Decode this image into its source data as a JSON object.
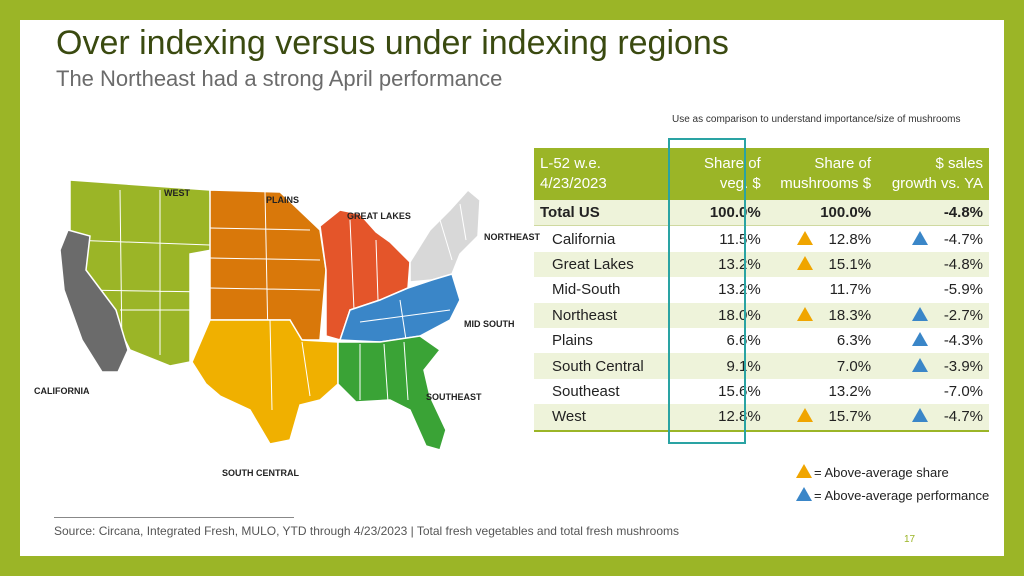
{
  "title": "Over indexing versus under indexing regions",
  "subtitle": "The Northeast had a strong April performance",
  "note": "Use as comparison to understand importance/size of mushrooms",
  "map": {
    "labels": {
      "west": "WEST",
      "plains": "PLAINS",
      "great_lakes": "GREAT LAKES",
      "northeast": "NORTHEAST",
      "mid_south": "MID SOUTH",
      "california": "CALIFORNIA",
      "southeast": "SOUTHEAST",
      "south_central": "SOUTH CENTRAL"
    },
    "colors": {
      "west": "#9bb527",
      "plains": "#d9780a",
      "great_lakes": "#e4552a",
      "northeast": "#d8d8d8",
      "mid_south": "#3a86c8",
      "california": "#6b6b6b",
      "southeast": "#3aa336",
      "south_central": "#f0b000"
    }
  },
  "table": {
    "headers": {
      "col1": [
        "L-52 w.e.",
        "4/23/2023"
      ],
      "col2": [
        "Share of",
        "veg. $"
      ],
      "col3": [
        "Share of",
        "mushrooms $"
      ],
      "col4": [
        "$ sales",
        "growth vs. YA"
      ]
    },
    "total": {
      "name": "Total US",
      "veg": "100.0%",
      "mush": "100.0%",
      "growth": "-4.8%"
    },
    "rows": [
      {
        "name": "California",
        "veg": "11.5%",
        "mush": "12.8%",
        "growth": "-4.7%",
        "share_flag": true,
        "perf_flag": true
      },
      {
        "name": "Great Lakes",
        "veg": "13.2%",
        "mush": "15.1%",
        "growth": "-4.8%",
        "share_flag": true,
        "perf_flag": false
      },
      {
        "name": "Mid-South",
        "veg": "13.2%",
        "mush": "11.7%",
        "growth": "-5.9%",
        "share_flag": false,
        "perf_flag": false
      },
      {
        "name": "Northeast",
        "veg": "18.0%",
        "mush": "18.3%",
        "growth": "-2.7%",
        "share_flag": true,
        "perf_flag": true
      },
      {
        "name": "Plains",
        "veg": "6.6%",
        "mush": "6.3%",
        "growth": "-4.3%",
        "share_flag": false,
        "perf_flag": true
      },
      {
        "name": "South Central",
        "veg": "9.1%",
        "mush": "7.0%",
        "growth": "-3.9%",
        "share_flag": false,
        "perf_flag": true
      },
      {
        "name": "Southeast",
        "veg": "15.6%",
        "mush": "13.2%",
        "growth": "-7.0%",
        "share_flag": false,
        "perf_flag": false
      },
      {
        "name": "West",
        "veg": "12.8%",
        "mush": "15.7%",
        "growth": "-4.7%",
        "share_flag": true,
        "perf_flag": true
      }
    ]
  },
  "legend": {
    "share": "= Above-average share",
    "performance": "= Above-average performance"
  },
  "source": "Source: Circana, Integrated Fresh, MULO, YTD through 4/23/2023 | Total fresh vegetables and total fresh mushrooms",
  "page_number": "17"
}
